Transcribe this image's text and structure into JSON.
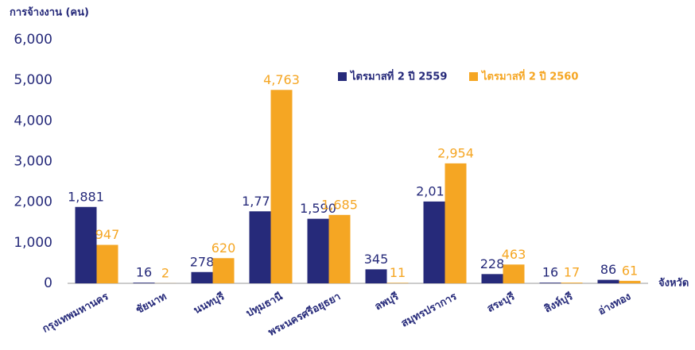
{
  "chart_data": {
    "type": "bar",
    "y_label": "การจ้างงาน (คน)",
    "x_label": "จังหวัด",
    "categories": [
      "กรุงเทพมหานคร",
      "ชัยนาท",
      "นนทบุรี",
      "ปทุมธานี",
      "พระนครศรีอยุธยา",
      "ลพบุรี",
      "สมุทรปราการ",
      "สระบุรี",
      "สิงห์บุรี",
      "อ่างทอง"
    ],
    "series": [
      {
        "name": "ไตรมาสที่ 2 ปี 2559",
        "color": "#262a7a",
        "values": [
          1881,
          16,
          278,
          1773,
          1590,
          345,
          2015,
          228,
          16,
          86
        ],
        "value_labels": [
          "1,881",
          "16",
          "278",
          "1,773",
          "1,590",
          "345",
          "2,015",
          "228",
          "16",
          "86"
        ]
      },
      {
        "name": "ไตรมาสที่ 2 ปี 2560",
        "color": "#f5a623",
        "values": [
          947,
          2,
          620,
          4763,
          1685,
          11,
          2954,
          463,
          17,
          61
        ],
        "value_labels": [
          "947",
          "2",
          "620",
          "4,763",
          "1,685",
          "11",
          "2,954",
          "463",
          "17",
          "61"
        ]
      }
    ],
    "ylim": [
      0,
      6000
    ],
    "yticks": [
      0,
      {
        "value": 1000,
        "label": "1,000"
      },
      {
        "value": 2000,
        "label": "2,000"
      },
      {
        "value": 3000,
        "label": "3,000"
      },
      {
        "value": 4000,
        "label": "4,000"
      },
      {
        "value": 5000,
        "label": "5,000"
      },
      {
        "value": 6000,
        "label": "6,000"
      }
    ]
  }
}
